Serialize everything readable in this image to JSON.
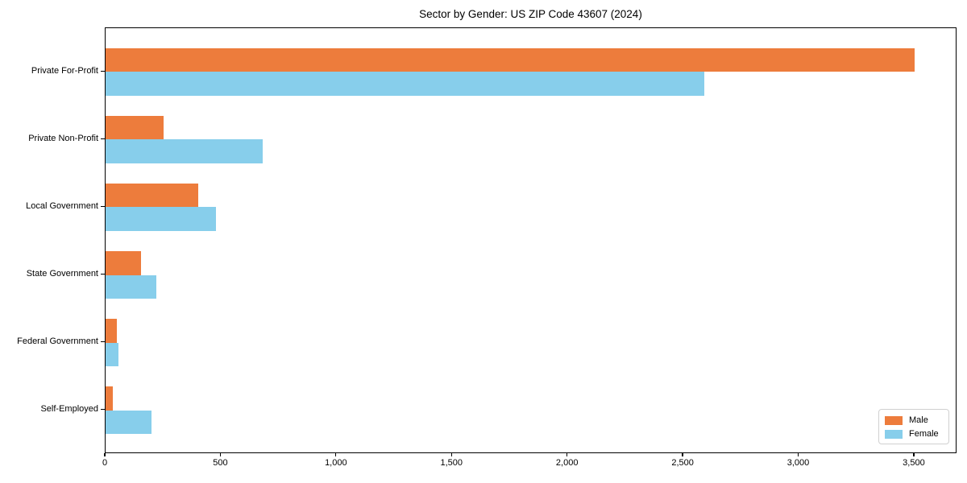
{
  "chart_data": {
    "type": "bar",
    "orientation": "horizontal",
    "title": "Sector by Gender: US ZIP Code 43607 (2024)",
    "categories": [
      "Private For-Profit",
      "Private Non-Profit",
      "Local Government",
      "State Government",
      "Federal Government",
      "Self-Employed"
    ],
    "series": [
      {
        "name": "Male",
        "color": "#ED7C3C",
        "values": [
          3500,
          252,
          400,
          154,
          48,
          30
        ]
      },
      {
        "name": "Female",
        "color": "#87CEEB",
        "values": [
          2590,
          680,
          477,
          219,
          57,
          197
        ]
      }
    ],
    "xlabel": "",
    "ylabel": "",
    "xlim": [
      0,
      3685
    ],
    "x_ticks": [
      0,
      500,
      1000,
      1500,
      2000,
      2500,
      3000,
      3500
    ],
    "x_tick_labels": [
      "0",
      "500",
      "1,000",
      "1,500",
      "2,000",
      "2,500",
      "3,000",
      "3,500"
    ],
    "grid": false,
    "legend_position": "lower right",
    "colors": {
      "axis": "#000000",
      "legend_border": "#d0d0d0",
      "background": "#ffffff"
    }
  }
}
